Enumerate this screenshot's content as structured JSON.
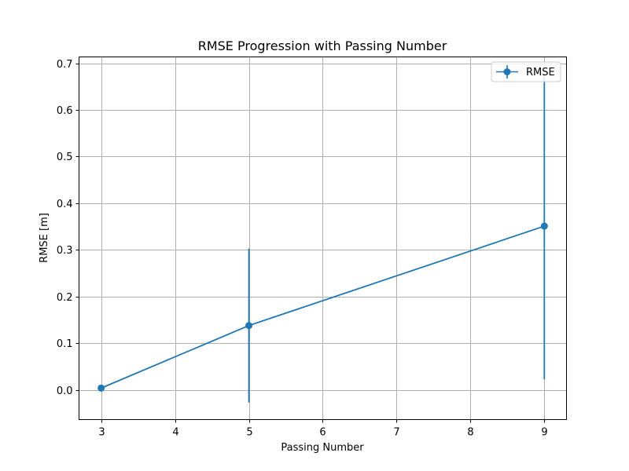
{
  "chart_data": {
    "type": "line",
    "title": "RMSE Progression with Passing Number",
    "xlabel": "Passing Number",
    "ylabel": "RMSE [m]",
    "xlim": [
      2.7,
      9.3
    ],
    "ylim": [
      -0.0635,
      0.7135
    ],
    "xticks": [
      3,
      4,
      5,
      6,
      7,
      8,
      9
    ],
    "yticks": [
      0.0,
      0.1,
      0.2,
      0.3,
      0.4,
      0.5,
      0.6,
      0.7
    ],
    "ytick_labels": [
      "0.0",
      "0.1",
      "0.2",
      "0.3",
      "0.4",
      "0.5",
      "0.6",
      "0.7"
    ],
    "grid": true,
    "legend_position": "top-right",
    "series": [
      {
        "name": "RMSE",
        "color": "#1f77b4",
        "marker": "circle",
        "x": [
          3,
          5,
          9
        ],
        "values": [
          0.004,
          0.138,
          0.351
        ],
        "error": [
          0.0,
          0.165,
          0.328
        ]
      }
    ]
  }
}
